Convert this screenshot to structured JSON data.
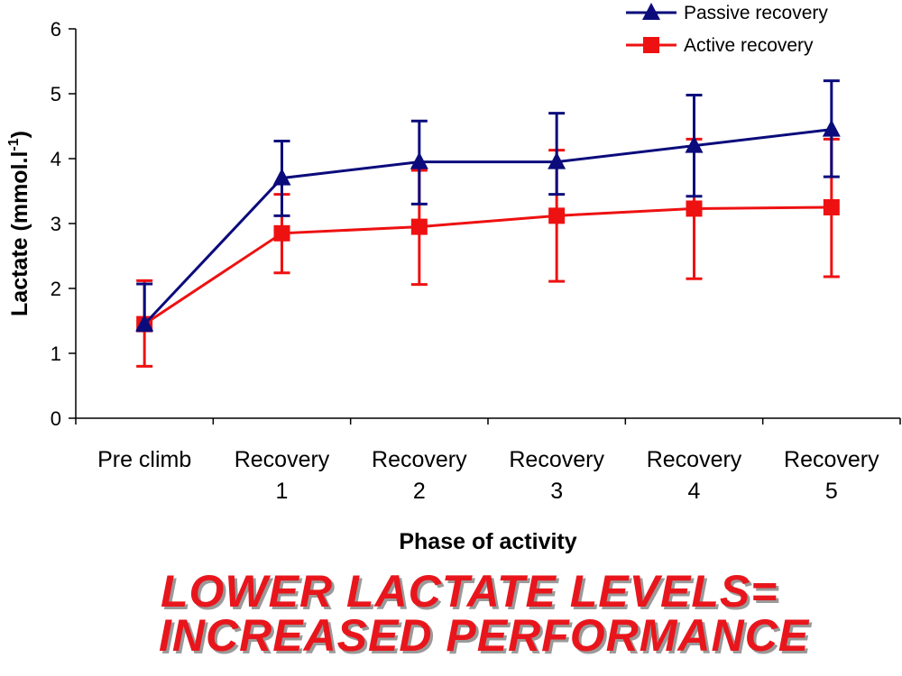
{
  "chart_data": {
    "type": "line",
    "title": "",
    "xlabel": "Phase of activity",
    "ylabel": "Lactate (mmol.l",
    "ylabel_superscript": "-1",
    "ylabel_close": ")",
    "ylim": [
      0,
      6
    ],
    "yticks": [
      "0",
      "1",
      "2",
      "3",
      "4",
      "5",
      "6"
    ],
    "categories": [
      [
        "Pre climb"
      ],
      [
        "Recovery",
        "1"
      ],
      [
        "Recovery",
        "2"
      ],
      [
        "Recovery",
        "3"
      ],
      [
        "Recovery",
        "4"
      ],
      [
        "Recovery",
        "5"
      ]
    ],
    "legend_position": "top-right",
    "series": [
      {
        "name": "Passive recovery",
        "color": "#0b0b7c",
        "marker": "triangle",
        "values": [
          1.45,
          3.7,
          3.95,
          3.95,
          4.2,
          4.45
        ],
        "error_low": [
          1.35,
          3.12,
          3.3,
          3.45,
          3.42,
          3.72
        ],
        "error_high": [
          2.07,
          4.27,
          4.58,
          4.7,
          4.98,
          5.2
        ]
      },
      {
        "name": "Active recovery",
        "color": "#ee1111",
        "marker": "square",
        "values": [
          1.45,
          2.85,
          2.95,
          3.12,
          3.23,
          3.25
        ],
        "error_low": [
          0.8,
          2.24,
          2.06,
          2.11,
          2.15,
          2.18
        ],
        "error_high": [
          2.12,
          3.45,
          3.82,
          4.13,
          4.3,
          4.3
        ]
      }
    ]
  },
  "banner": {
    "line1": "LOWER LACTATE LEVELS=",
    "line2": "INCREASED PERFORMANCE"
  }
}
